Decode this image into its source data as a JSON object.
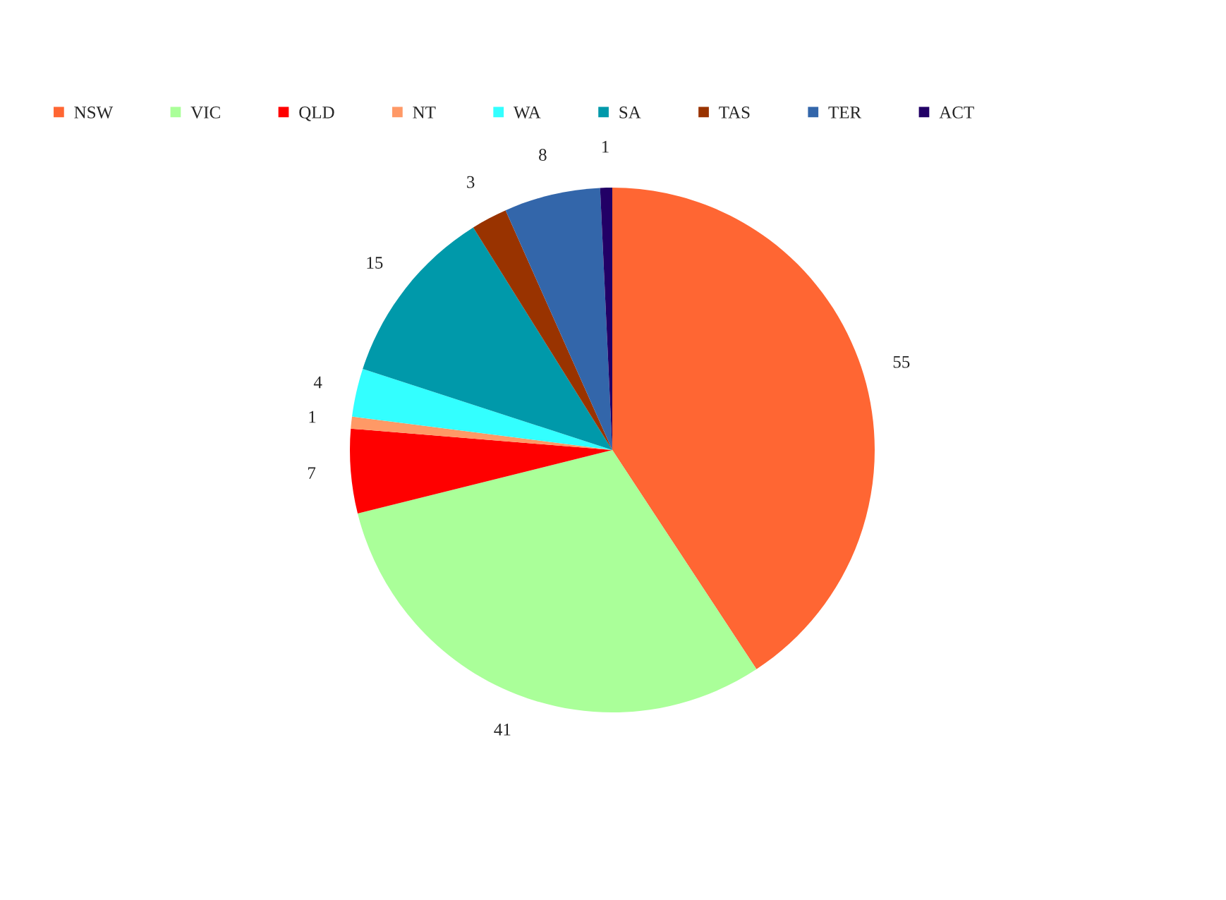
{
  "chart_data": {
    "type": "pie",
    "categories": [
      "NSW",
      "VIC",
      "QLD",
      "NT",
      "WA",
      "SA",
      "TAS",
      "TER",
      "ACT"
    ],
    "values": [
      55,
      41,
      7,
      1,
      4,
      15,
      3,
      8,
      1
    ],
    "colors": [
      "#ff6633",
      "#aaff99",
      "#ff0000",
      "#ff9966",
      "#33ffff",
      "#0099aa",
      "#993300",
      "#3366aa",
      "#220066"
    ],
    "data_labels": true,
    "legend": "top left"
  }
}
